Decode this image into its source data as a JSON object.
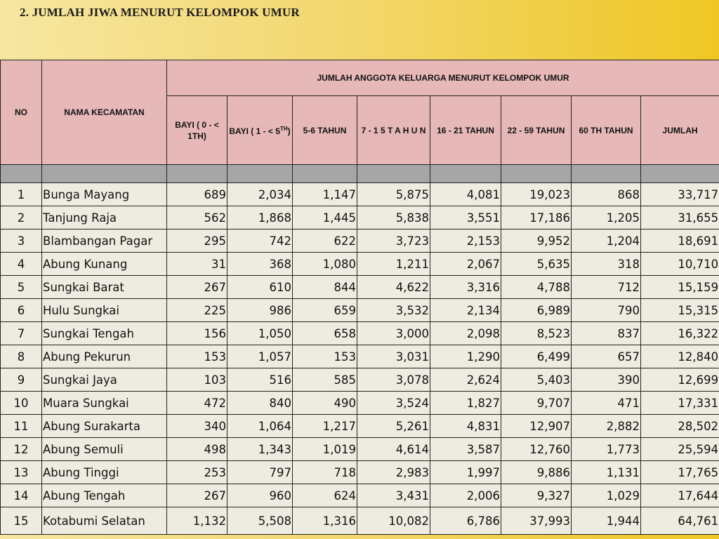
{
  "title": "2.  JUMLAH JIWA MENURUT KELOMPOK UMUR",
  "header": {
    "no": "NO",
    "nama": "NAMA KECAMATAN",
    "group": "JUMLAH  ANGGOTA  KELUARGA  MENURUT  KELOMPOK  UMUR",
    "bayi1": "BAYI ( 0 - < 1TH)",
    "bayi2_main": "BAYI ( 1 - < 5",
    "bayi2_sup": "TH",
    "bayi2_end": ")",
    "c56": "5-6 TAHUN",
    "c715": "7  -  1 5   T A H U N",
    "c1621": "16 - 21 TAHUN",
    "c2259": "22 - 59 TAHUN",
    "c60": "60 TH TAHUN",
    "jumlah": "JUMLAH"
  },
  "rows": [
    {
      "no": "1",
      "nama": "Bunga Mayang",
      "v": [
        "689",
        "2,034",
        "1,147",
        "5,875",
        "4,081",
        "19,023",
        "868",
        "33,717"
      ]
    },
    {
      "no": "2",
      "nama": "Tanjung Raja",
      "v": [
        "562",
        "1,868",
        "1,445",
        "5,838",
        "3,551",
        "17,186",
        "1,205",
        "31,655"
      ]
    },
    {
      "no": "3",
      "nama": "Blambangan Pagar",
      "v": [
        "295",
        "742",
        "622",
        "3,723",
        "2,153",
        "9,952",
        "1,204",
        "18,691"
      ]
    },
    {
      "no": "4",
      "nama": "Abung Kunang",
      "v": [
        "31",
        "368",
        "1,080",
        "1,211",
        "2,067",
        "5,635",
        "318",
        "10,710"
      ]
    },
    {
      "no": "5",
      "nama": "Sungkai Barat",
      "v": [
        "267",
        "610",
        "844",
        "4,622",
        "3,316",
        "4,788",
        "712",
        "15,159"
      ]
    },
    {
      "no": "6",
      "nama": "Hulu Sungkai",
      "v": [
        "225",
        "986",
        "659",
        "3,532",
        "2,134",
        "6,989",
        "790",
        "15,315"
      ]
    },
    {
      "no": "7",
      "nama": "Sungkai Tengah",
      "v": [
        "156",
        "1,050",
        "658",
        "3,000",
        "2,098",
        "8,523",
        "837",
        "16,322"
      ]
    },
    {
      "no": "8",
      "nama": "Abung Pekurun",
      "v": [
        "153",
        "1,057",
        "153",
        "3,031",
        "1,290",
        "6,499",
        "657",
        "12,840"
      ]
    },
    {
      "no": "9",
      "nama": "Sungkai Jaya",
      "v": [
        "103",
        "516",
        "585",
        "3,078",
        "2,624",
        "5,403",
        "390",
        "12,699"
      ]
    },
    {
      "no": "10",
      "nama": "Muara Sungkai",
      "v": [
        "472",
        "840",
        "490",
        "3,524",
        "1,827",
        "9,707",
        "471",
        "17,331"
      ]
    },
    {
      "no": "11",
      "nama": "Abung Surakarta",
      "v": [
        "340",
        "1,064",
        "1,217",
        "5,261",
        "4,831",
        "12,907",
        "2,882",
        "28,502"
      ]
    },
    {
      "no": "12",
      "nama": "Abung Semuli",
      "v": [
        "498",
        "1,343",
        "1,019",
        "4,614",
        "3,587",
        "12,760",
        "1,773",
        "25,594"
      ]
    },
    {
      "no": "13",
      "nama": "Abung Tinggi",
      "v": [
        "253",
        "797",
        "718",
        "2,983",
        "1,997",
        "9,886",
        "1,131",
        "17,765"
      ]
    },
    {
      "no": "14",
      "nama": "Abung Tengah",
      "v": [
        "267",
        "960",
        "624",
        "3,431",
        "2,006",
        "9,327",
        "1,029",
        "17,644"
      ]
    },
    {
      "no": "15",
      "nama": "Kotabumi Selatan",
      "v": [
        "1,132",
        "5,508",
        "1,316",
        "10,082",
        "6,786",
        "37,993",
        "1,944",
        "64,761"
      ]
    }
  ]
}
